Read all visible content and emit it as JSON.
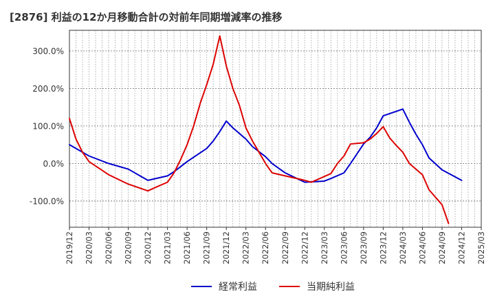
{
  "chart_data": {
    "type": "line",
    "title": "[2876]  利益の12か月移動合計の対前年同期増減率の推移",
    "xlabel": "",
    "ylabel": "",
    "ylim": [
      -170,
      355
    ],
    "yticks": [
      -100,
      0,
      100,
      200,
      300
    ],
    "ytick_labels": [
      "-100.0%",
      "0.0%",
      "100.0%",
      "200.0%",
      "300.0%"
    ],
    "x_range": [
      "2019-12",
      "2025-03"
    ],
    "x_tick_labels": [
      "2019/12",
      "2020/03",
      "2020/06",
      "2020/09",
      "2020/12",
      "2021/03",
      "2021/06",
      "2021/09",
      "2021/12",
      "2022/03",
      "2022/06",
      "2022/09",
      "2022/12",
      "2023/03",
      "2023/06",
      "2023/09",
      "2023/12",
      "2024/03",
      "2024/06",
      "2024/09",
      "2024/12",
      "2025/03"
    ],
    "grid": true,
    "legend_position": "bottom",
    "series": [
      {
        "name": "経常利益",
        "color": "#0000cc",
        "points": [
          [
            "2019-12",
            50
          ],
          [
            "2020-03",
            20
          ],
          [
            "2020-06",
            0
          ],
          [
            "2020-09",
            -15
          ],
          [
            "2020-12",
            -45
          ],
          [
            "2021-03",
            -33
          ],
          [
            "2021-04",
            -22
          ],
          [
            "2021-06",
            5
          ],
          [
            "2021-09",
            40
          ],
          [
            "2021-10",
            60
          ],
          [
            "2021-11",
            85
          ],
          [
            "2021-12",
            113
          ],
          [
            "2022-01",
            95
          ],
          [
            "2022-03",
            65
          ],
          [
            "2022-04",
            45
          ],
          [
            "2022-06",
            18
          ],
          [
            "2022-07",
            0
          ],
          [
            "2022-09",
            -25
          ],
          [
            "2022-12",
            -50
          ],
          [
            "2023-03",
            -47
          ],
          [
            "2023-04",
            -40
          ],
          [
            "2023-06",
            -25
          ],
          [
            "2023-07",
            0
          ],
          [
            "2023-09",
            52
          ],
          [
            "2023-10",
            70
          ],
          [
            "2023-11",
            95
          ],
          [
            "2023-12",
            127
          ],
          [
            "2024-03",
            145
          ],
          [
            "2024-04",
            110
          ],
          [
            "2024-05",
            78
          ],
          [
            "2024-06",
            50
          ],
          [
            "2024-07",
            15
          ],
          [
            "2024-09",
            -17
          ],
          [
            "2024-12",
            -45
          ]
        ]
      },
      {
        "name": "当期純利益",
        "color": "#dd0000",
        "points": [
          [
            "2019-12",
            120
          ],
          [
            "2020-01",
            65
          ],
          [
            "2020-02",
            30
          ],
          [
            "2020-03",
            5
          ],
          [
            "2020-06",
            -30
          ],
          [
            "2020-09",
            -55
          ],
          [
            "2020-12",
            -73
          ],
          [
            "2021-01",
            -65
          ],
          [
            "2021-03",
            -50
          ],
          [
            "2021-04",
            -25
          ],
          [
            "2021-05",
            10
          ],
          [
            "2021-06",
            50
          ],
          [
            "2021-07",
            100
          ],
          [
            "2021-08",
            160
          ],
          [
            "2021-09",
            210
          ],
          [
            "2021-10",
            265
          ],
          [
            "2021-11",
            340
          ],
          [
            "2021-12",
            260
          ],
          [
            "2022-01",
            200
          ],
          [
            "2022-02",
            155
          ],
          [
            "2022-03",
            95
          ],
          [
            "2022-04",
            60
          ],
          [
            "2022-05",
            30
          ],
          [
            "2022-06",
            0
          ],
          [
            "2022-07",
            -25
          ],
          [
            "2022-09",
            -33
          ],
          [
            "2022-12",
            -45
          ],
          [
            "2023-01",
            -50
          ],
          [
            "2023-04",
            -27
          ],
          [
            "2023-05",
            0
          ],
          [
            "2023-06",
            20
          ],
          [
            "2023-07",
            52
          ],
          [
            "2023-09",
            55
          ],
          [
            "2023-10",
            65
          ],
          [
            "2023-11",
            80
          ],
          [
            "2023-12",
            98
          ],
          [
            "2024-01",
            68
          ],
          [
            "2024-02",
            48
          ],
          [
            "2024-03",
            30
          ],
          [
            "2024-04",
            0
          ],
          [
            "2024-06",
            -30
          ],
          [
            "2024-07",
            -70
          ],
          [
            "2024-09",
            -110
          ],
          [
            "2024-10",
            -160
          ]
        ]
      }
    ]
  }
}
